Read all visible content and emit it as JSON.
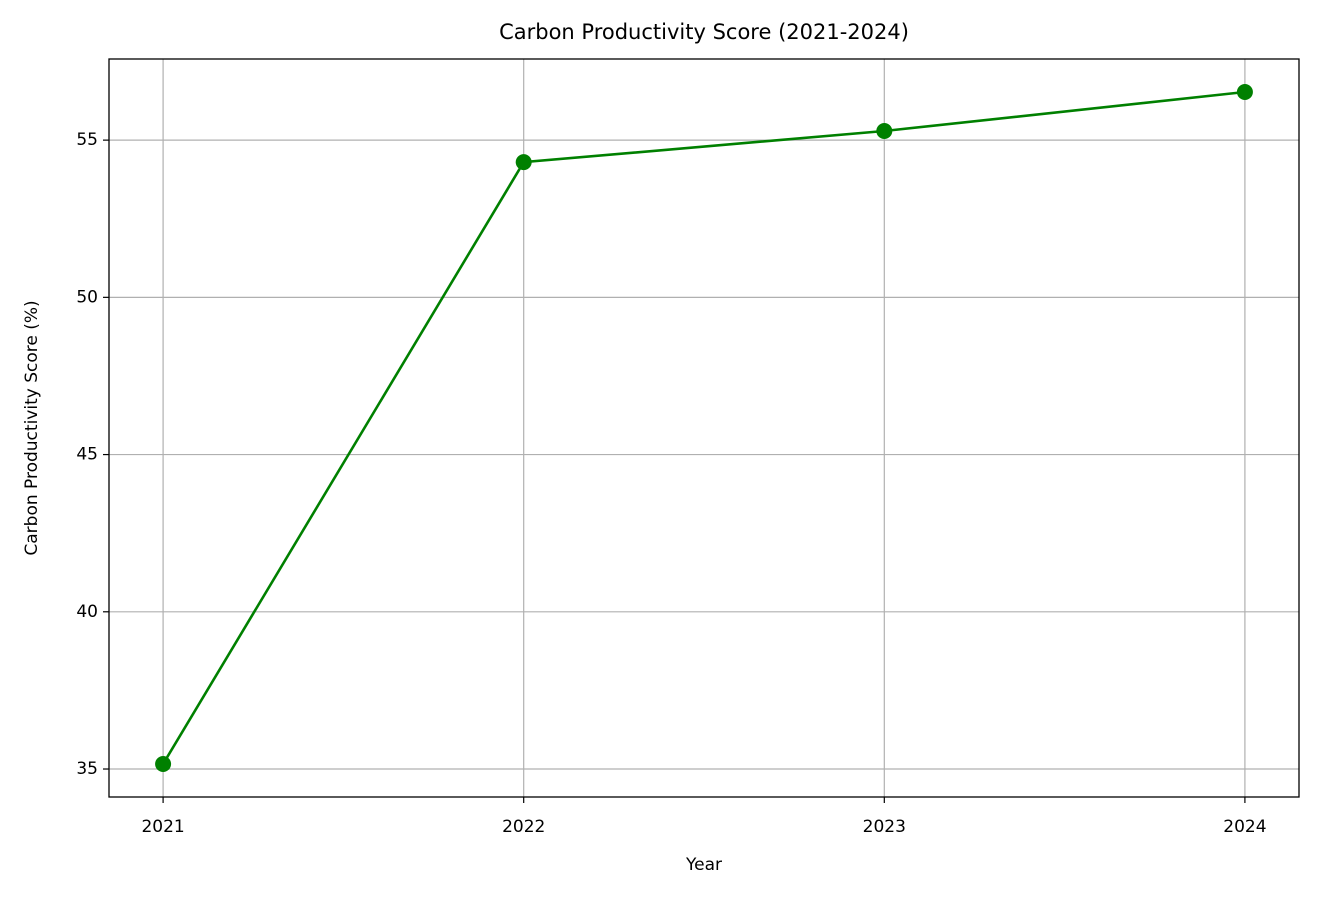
{
  "chart_data": {
    "type": "line",
    "title": "Carbon Productivity Score (2021-2024)",
    "x_label": "Year",
    "y_label": "Carbon Productivity Score (%)",
    "x": [
      2021,
      2022,
      2023,
      2024
    ],
    "series": [
      {
        "name": "Carbon Productivity Score",
        "color": "#008000",
        "values": [
          35.16,
          54.3,
          55.29,
          56.53
        ]
      }
    ],
    "xlim": [
      2020.85,
      2024.15
    ],
    "xticks": [
      2021,
      2022,
      2023,
      2024
    ],
    "ylim": [
      34.11,
      57.58
    ],
    "yticks": [
      35,
      40,
      45,
      50,
      55
    ],
    "grid": true
  }
}
